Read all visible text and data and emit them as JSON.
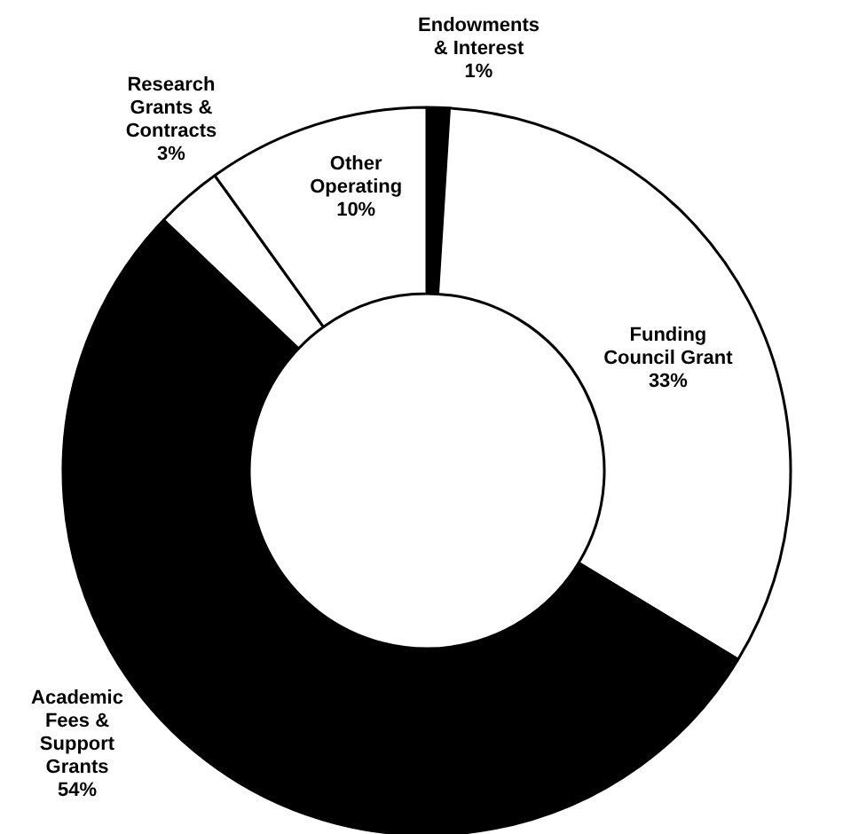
{
  "chart_data": {
    "type": "donut",
    "categories": [
      "Endowments\n& Interest",
      "Funding\nCouncil Grant",
      "Academic\nFees &\nSupport\nGrants",
      "Research\nGrants &\nContracts",
      "Other\nOperating"
    ],
    "values": [
      1,
      33,
      54,
      3,
      10
    ],
    "colors": [
      "#000000",
      "#ffffff",
      "#000000",
      "#ffffff",
      "#ffffff"
    ],
    "value_labels": [
      "1%",
      "33%",
      "54%",
      "3%",
      "10%"
    ]
  }
}
